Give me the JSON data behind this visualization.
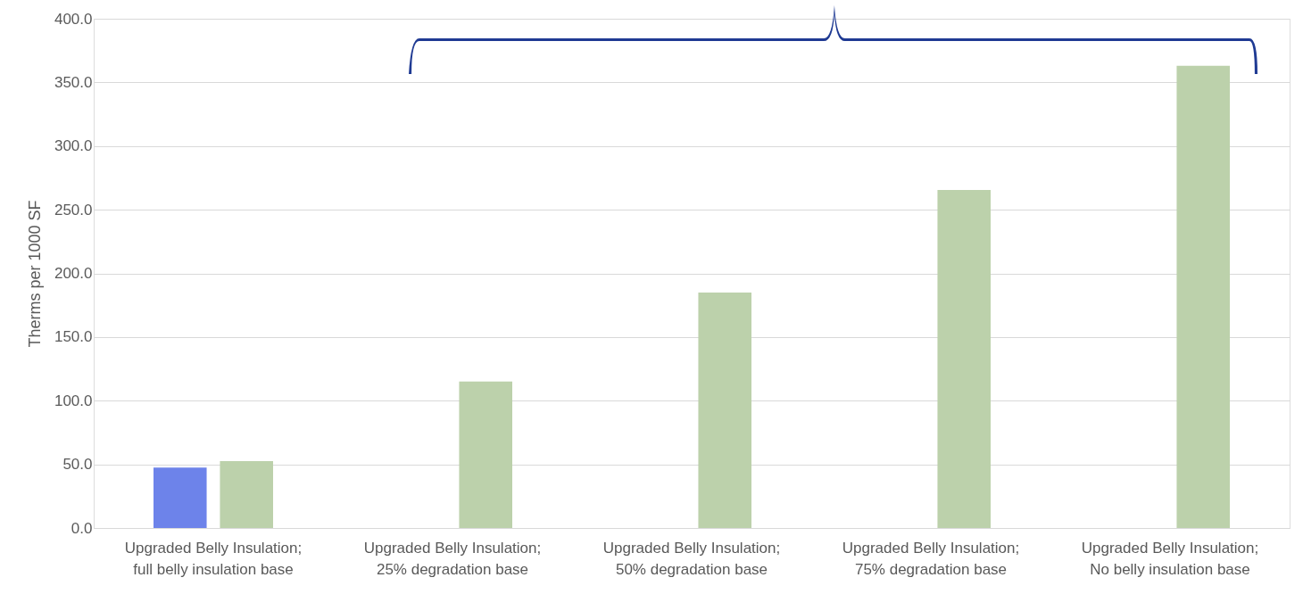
{
  "chart_data": {
    "type": "bar",
    "ylabel": "Therms per 1000 SF",
    "categories": [
      "Upgraded Belly Insulation; full belly insulation base",
      "Upgraded Belly Insulation; 25% degradation  base",
      "Upgraded Belly Insulation; 50% degradation base",
      "Upgraded Belly Insulation; 75% degradation base",
      "Upgraded Belly Insulation; No belly insulation base"
    ],
    "series": [
      {
        "color": "#6d83ea",
        "values": [
          47.5,
          null,
          null,
          null,
          null
        ]
      },
      {
        "color": "#bcd1ab",
        "values": [
          52.5,
          115,
          185,
          265.5,
          363
        ]
      }
    ],
    "ylim": [
      0,
      400
    ],
    "yticks": [
      {
        "value": 0,
        "label": "0.0"
      },
      {
        "value": 50,
        "label": "50.0"
      },
      {
        "value": 100,
        "label": "100.0"
      },
      {
        "value": 150,
        "label": "150.0"
      },
      {
        "value": 200,
        "label": "200.0"
      },
      {
        "value": 250,
        "label": "250.0"
      },
      {
        "value": 300,
        "label": "300.0"
      },
      {
        "value": 350,
        "label": "350.0"
      },
      {
        "value": 400,
        "label": "400.0"
      }
    ],
    "grid": "y",
    "legend": false
  }
}
